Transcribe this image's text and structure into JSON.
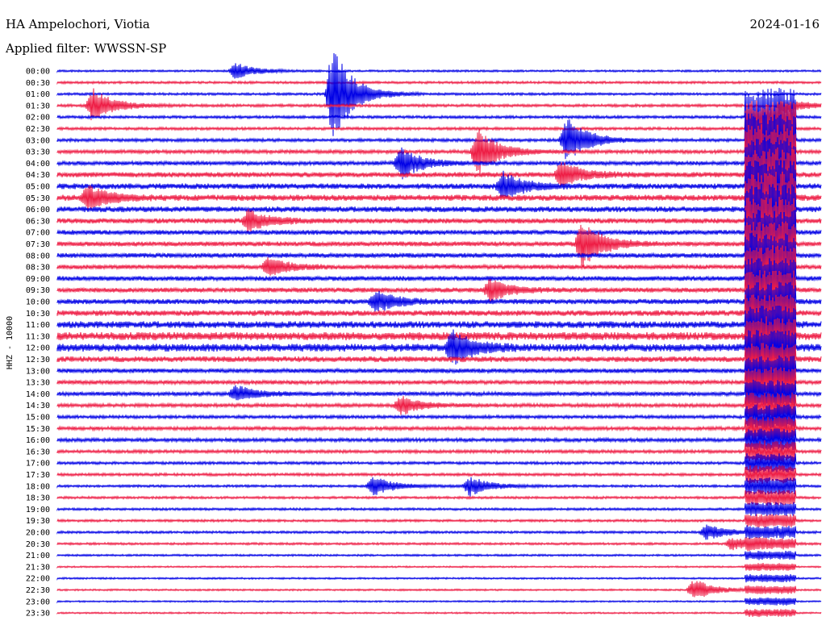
{
  "header": {
    "station": "HA Ampelochori, Viotia",
    "filter": "Applied filter: WWSSN-SP",
    "date": "2024-01-16"
  },
  "chart_data": {
    "type": "line",
    "title": "HA Ampelochori, Viotia",
    "subtitle": "Applied filter: WWSSN-SP",
    "date": "2024-01-16",
    "ylabel": "HHZ - 10000",
    "row_labels": [
      "00:00",
      "00:30",
      "01:00",
      "01:30",
      "02:00",
      "02:30",
      "03:00",
      "03:30",
      "04:00",
      "04:30",
      "05:00",
      "05:30",
      "06:00",
      "06:30",
      "07:00",
      "07:30",
      "08:00",
      "08:30",
      "09:00",
      "09:30",
      "10:00",
      "10:30",
      "11:00",
      "11:30",
      "12:00",
      "12:30",
      "13:00",
      "13:30",
      "14:00",
      "14:30",
      "15:00",
      "15:30",
      "16:00",
      "16:30",
      "17:00",
      "17:30",
      "18:00",
      "18:30",
      "19:00",
      "19:30",
      "20:00",
      "20:30",
      "21:00",
      "21:30",
      "22:00",
      "22:30",
      "23:00",
      "23:30"
    ],
    "trace_colors": [
      "#0000e6",
      "#ee1c44"
    ],
    "row_noise_levels": [
      0.25,
      0.3,
      0.3,
      0.35,
      0.35,
      0.35,
      0.4,
      0.45,
      0.5,
      0.65,
      0.7,
      0.75,
      0.7,
      0.65,
      0.6,
      0.6,
      0.6,
      0.55,
      0.6,
      0.6,
      0.65,
      0.7,
      0.85,
      1.0,
      0.95,
      0.7,
      0.55,
      0.5,
      0.5,
      0.45,
      0.4,
      0.45,
      0.45,
      0.4,
      0.35,
      0.35,
      0.3,
      0.3,
      0.3,
      0.3,
      0.3,
      0.28,
      0.25,
      0.2,
      0.22,
      0.22,
      0.2,
      0.2
    ],
    "events": [
      {
        "row": 0,
        "minute": 7.0,
        "amp": 10
      },
      {
        "row": 2,
        "minute": 10.8,
        "amp": 60
      },
      {
        "row": 3,
        "minute": 1.4,
        "amp": 22
      },
      {
        "row": 3,
        "minute": 28.5,
        "amp": 10
      },
      {
        "row": 6,
        "minute": 20.0,
        "amp": 30
      },
      {
        "row": 7,
        "minute": 16.5,
        "amp": 30
      },
      {
        "row": 8,
        "minute": 13.5,
        "amp": 20
      },
      {
        "row": 9,
        "minute": 19.8,
        "amp": 16
      },
      {
        "row": 10,
        "minute": 17.5,
        "amp": 18
      },
      {
        "row": 11,
        "minute": 1.2,
        "amp": 16
      },
      {
        "row": 13,
        "minute": 7.5,
        "amp": 14
      },
      {
        "row": 15,
        "minute": 20.6,
        "amp": 30
      },
      {
        "row": 17,
        "minute": 8.3,
        "amp": 12
      },
      {
        "row": 19,
        "minute": 17.0,
        "amp": 14
      },
      {
        "row": 20,
        "minute": 12.5,
        "amp": 14
      },
      {
        "row": 24,
        "minute": 15.5,
        "amp": 22
      },
      {
        "row": 28,
        "minute": 7.0,
        "amp": 10
      },
      {
        "row": 29,
        "minute": 13.5,
        "amp": 12
      },
      {
        "row": 36,
        "minute": 12.4,
        "amp": 12
      },
      {
        "row": 36,
        "minute": 16.2,
        "amp": 12
      },
      {
        "row": 40,
        "minute": 25.5,
        "amp": 10
      },
      {
        "row": 41,
        "minute": 26.5,
        "amp": 8
      },
      {
        "row": 45,
        "minute": 25.0,
        "amp": 14
      }
    ],
    "large_event": {
      "start_row": 4,
      "minute": 28.0,
      "amp": 35,
      "decay_rows": 8
    }
  }
}
